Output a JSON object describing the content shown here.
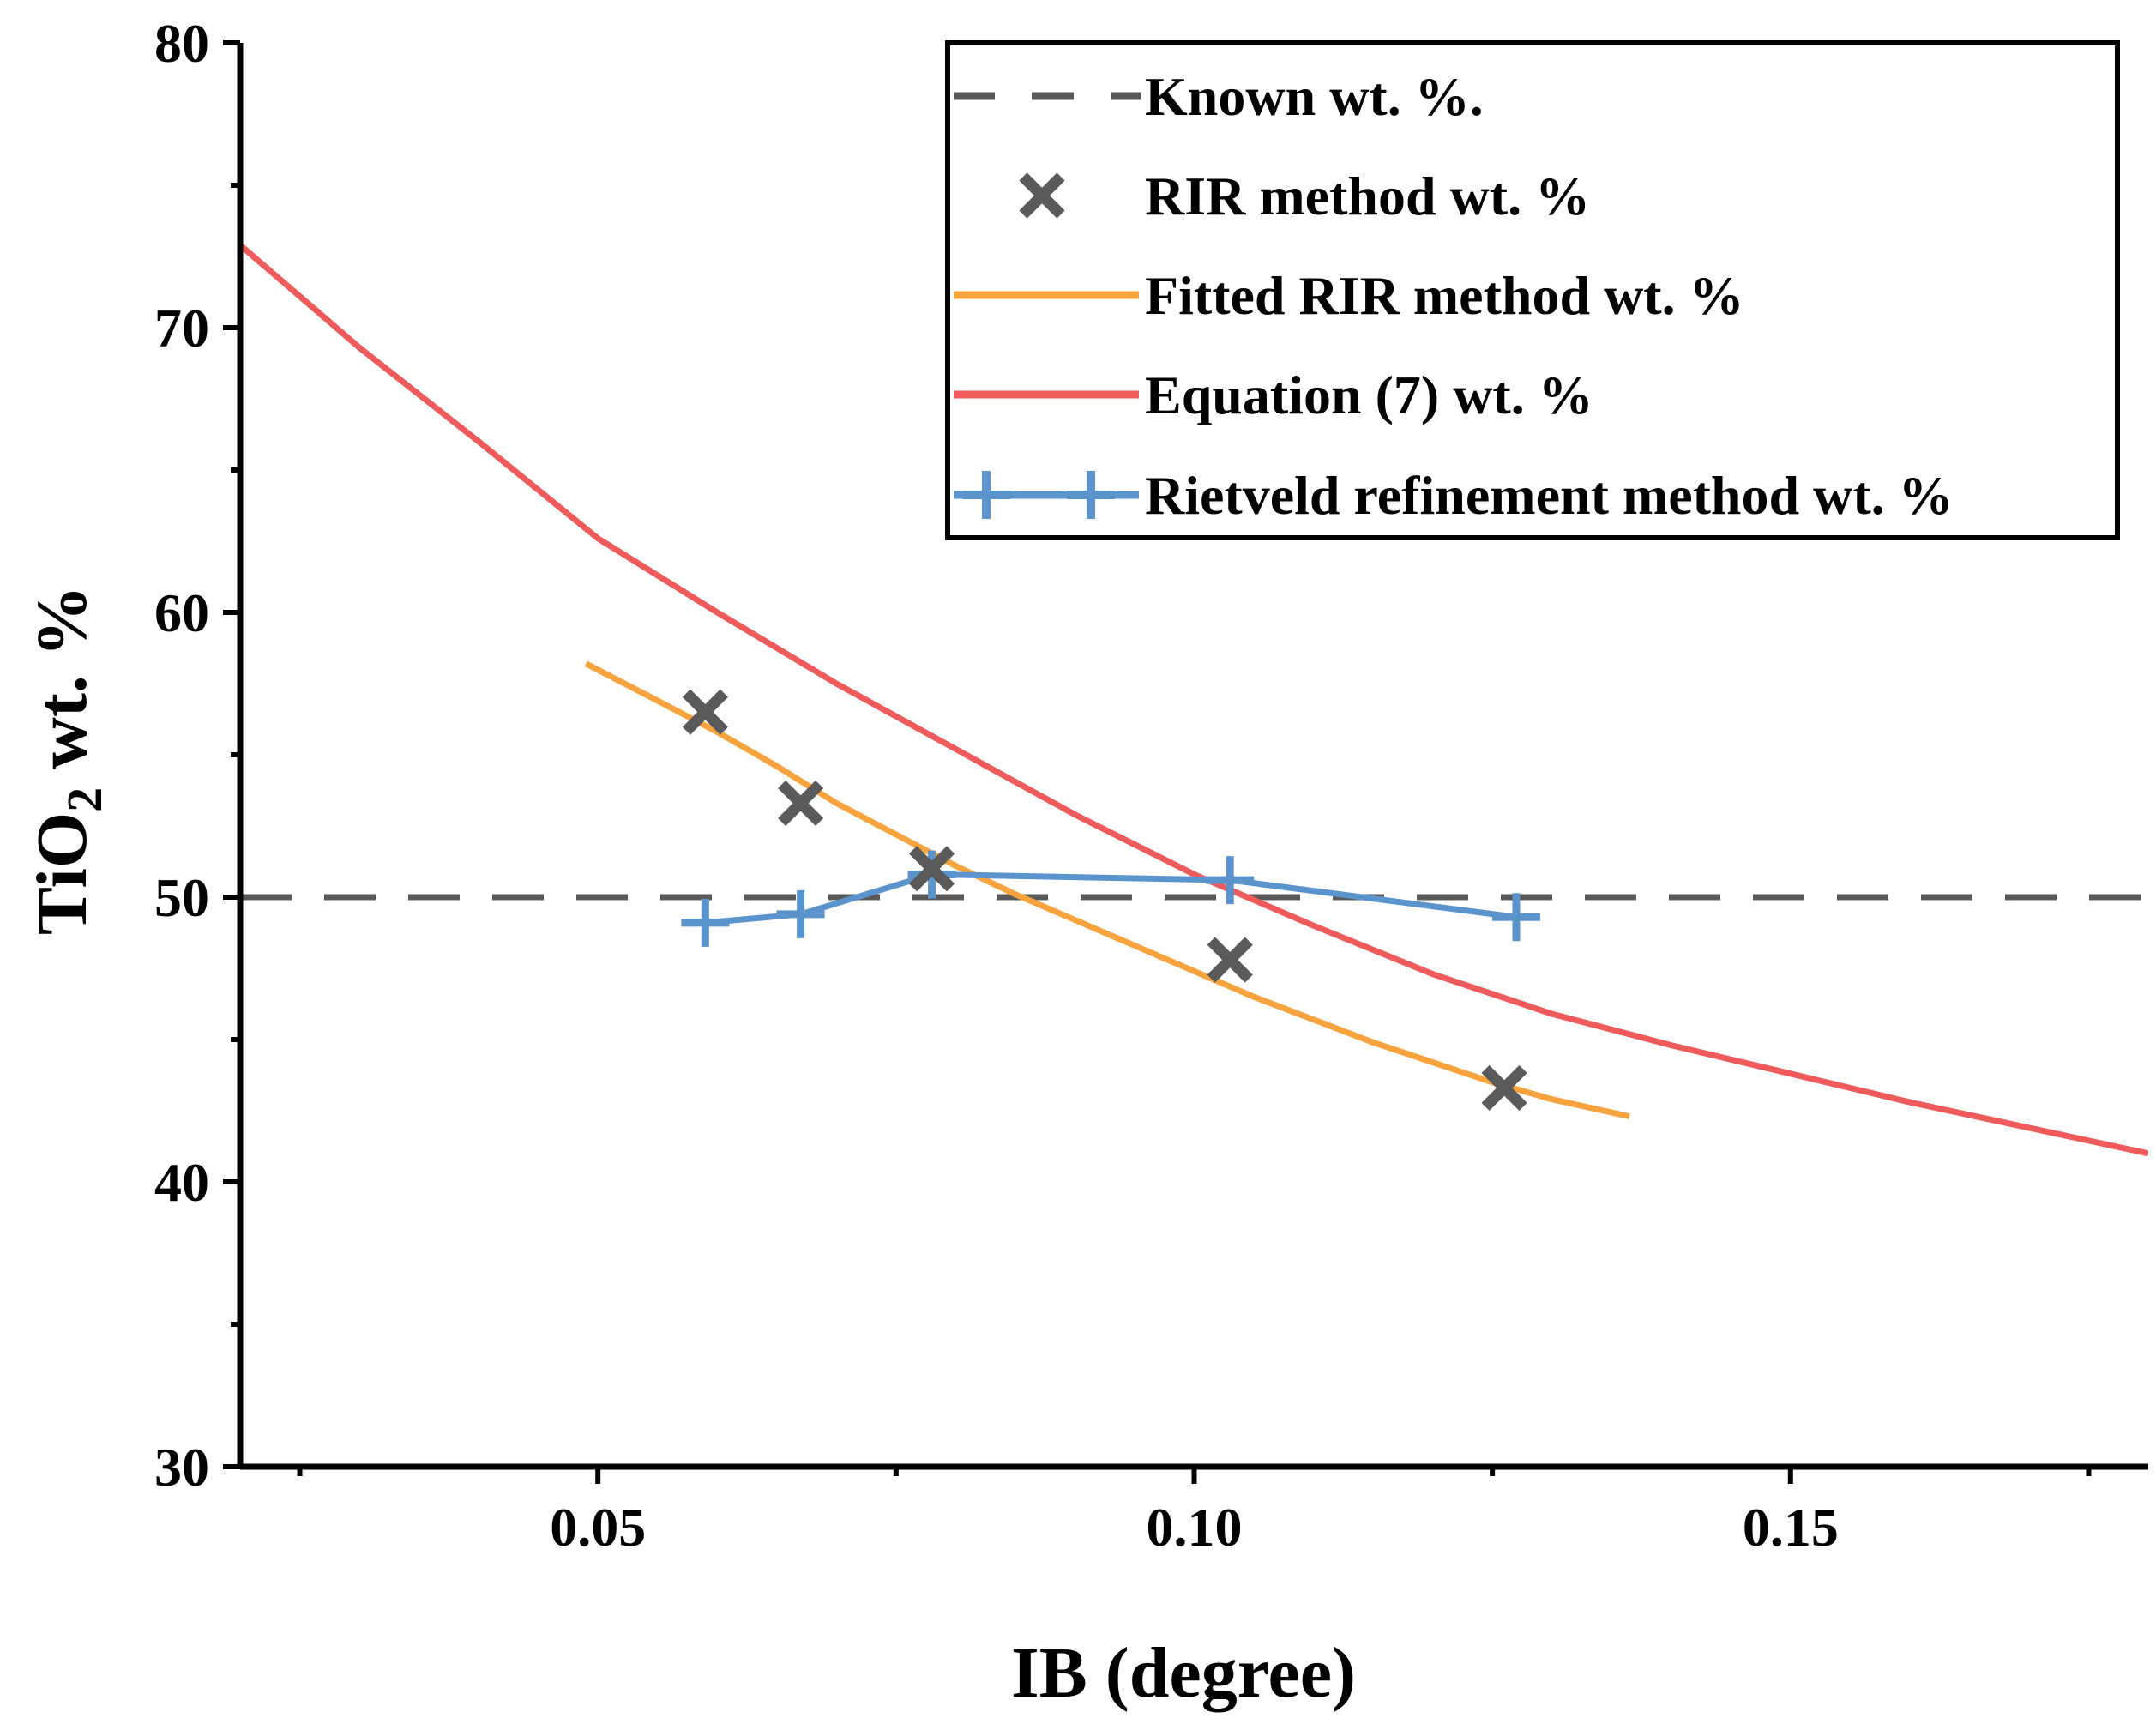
{
  "chart_data": {
    "type": "line",
    "title": "",
    "xlabel": "IB (degree)",
    "ylabel_main": "TiO",
    "ylabel_sub": "2",
    "ylabel_rest": " wt. %",
    "xlim": [
      0.02,
      0.18
    ],
    "ylim": [
      30,
      80
    ],
    "x_ticks": [
      0.05,
      0.1,
      0.15
    ],
    "x_tick_labels": [
      "0.05",
      "0.10",
      "0.15"
    ],
    "x_minor_ticks": [
      0.025,
      0.075,
      0.125,
      0.175
    ],
    "y_ticks": [
      30,
      40,
      50,
      60,
      70,
      80
    ],
    "y_tick_labels": [
      "30",
      "40",
      "50",
      "60",
      "70",
      "80"
    ],
    "y_minor_ticks": [
      35,
      45,
      55,
      65,
      75
    ],
    "legend_position": "top-right",
    "series": [
      {
        "name": "Known wt. %.",
        "kind": "dashed-line",
        "color": "#595959",
        "x": [
          0.02,
          0.18
        ],
        "y": [
          50,
          50
        ]
      },
      {
        "name": "RIR method wt. %",
        "kind": "markers-x",
        "color": "#5a5a5a",
        "x": [
          0.059,
          0.067,
          0.078,
          0.103,
          0.126
        ],
        "y": [
          56.5,
          53.3,
          51.0,
          47.8,
          43.3
        ]
      },
      {
        "name": "Fitted RIR method wt. %",
        "kind": "line",
        "color": "#f9a33e",
        "x": [
          0.049,
          0.055,
          0.06,
          0.065,
          0.07,
          0.075,
          0.08,
          0.085,
          0.09,
          0.095,
          0.1,
          0.105,
          0.11,
          0.115,
          0.12,
          0.125,
          0.13,
          0.1365
        ],
        "y": [
          58.2,
          56.9,
          55.8,
          54.6,
          53.3,
          52.2,
          51.1,
          50.1,
          49.2,
          48.3,
          47.4,
          46.5,
          45.7,
          44.9,
          44.2,
          43.5,
          42.9,
          42.3
        ]
      },
      {
        "name": "Equation (7) wt. %",
        "kind": "line",
        "color": "#ef5a5a",
        "x": [
          0.02,
          0.03,
          0.04,
          0.05,
          0.06,
          0.07,
          0.08,
          0.09,
          0.1,
          0.11,
          0.12,
          0.13,
          0.14,
          0.15,
          0.16,
          0.17,
          0.18
        ],
        "y": [
          72.9,
          69.3,
          66.0,
          62.6,
          60.0,
          57.5,
          55.2,
          52.9,
          50.8,
          49.0,
          47.3,
          45.9,
          44.8,
          43.8,
          42.8,
          41.9,
          41.0
        ]
      },
      {
        "name": "Rietveld refinement method wt. %",
        "kind": "line-plus",
        "color": "#5b93cd",
        "x": [
          0.059,
          0.067,
          0.078,
          0.103,
          0.127
        ],
        "y": [
          49.1,
          49.4,
          50.8,
          50.6,
          49.3
        ]
      }
    ]
  }
}
